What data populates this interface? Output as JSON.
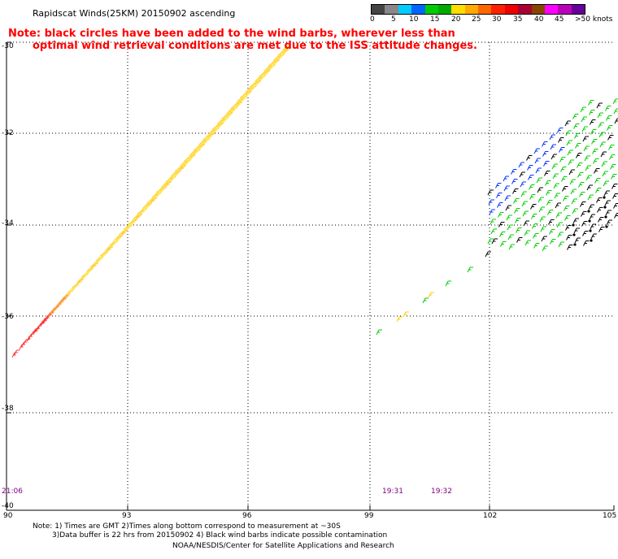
{
  "header": {
    "title": "Rapidscat Winds(25KM) 20150902 ascending",
    "note_line1": "Note: black circles have been added to the wind barbs, wherever less than",
    "note_line2": "optimal wind retrieval conditions are met due to the ISS attitude changes."
  },
  "scale": {
    "colors": [
      "#444444",
      "#888888",
      "#00ccff",
      "#0066ff",
      "#00cc00",
      "#00aa00",
      "#ffdd00",
      "#ffaa00",
      "#ff6600",
      "#ff2200",
      "#ee0000",
      "#aa0033",
      "#884400",
      "#ff00ff",
      "#bb00bb",
      "#660099"
    ],
    "labels": [
      "0",
      "5",
      "10",
      "15",
      "20",
      "25",
      "30",
      "35",
      "40",
      "45",
      ">50 knots"
    ]
  },
  "axes": {
    "y_labels": [
      "-30",
      "-32",
      "-34",
      "-36",
      "-38",
      "-40"
    ],
    "x_labels": [
      "90",
      "93",
      "96",
      "99",
      "102",
      "105"
    ]
  },
  "times": [
    "21:06",
    "19:31",
    "19:32"
  ],
  "footer": {
    "line1": "Note: 1) Times are GMT 2)Times along bottom correspond to measurement at ~30S",
    "line2": "3)Data buffer is 22 hrs from 20150902 4) Black wind barbs indicate possible contamination",
    "line3": "NOAA/NESDIS/Center for Satellite Applications and Research"
  },
  "swaths": [
    {
      "name": "left-swath",
      "colors": [
        "#ffee66",
        "#ffcc44",
        "#ff9933",
        "#ff3333",
        "#cc2200",
        "#000000",
        "#00aa00"
      ]
    },
    {
      "name": "right-swath",
      "colors": [
        "#00cc00",
        "#000000",
        "#0033ff"
      ]
    },
    {
      "name": "center-track",
      "colors": [
        "#00cc00",
        "#ffcc00",
        "#000000"
      ]
    }
  ]
}
